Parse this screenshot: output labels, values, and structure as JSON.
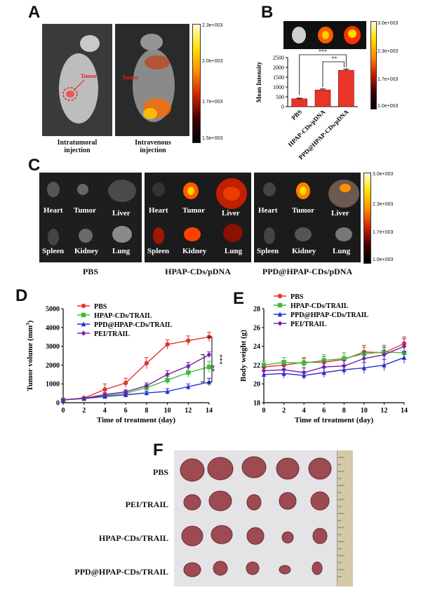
{
  "panels": {
    "a": "A",
    "b": "B",
    "c": "C",
    "d": "D",
    "e": "E",
    "f": "F"
  },
  "panelA": {
    "left_caption": "Intratumoral\ninjection",
    "right_caption": "Intravenous\ninjection",
    "tumor_label_left": "Tumor",
    "tumor_label_right": "Tumor",
    "colorbar_ticks": [
      "2.3e+003",
      "2.0e+003",
      "1.7e+003",
      "1.5e+003"
    ]
  },
  "panelB": {
    "colorbar_ticks": [
      "3.0e+003",
      "2.3e+003",
      "1.7e+003",
      "1.0e+003"
    ]
  },
  "panelC": {
    "groups": [
      "PBS",
      "HPAP-CDs/pDNA",
      "PPD@HPAP-CDs/pDNA"
    ],
    "organs_top": [
      "Heart",
      "Tumor",
      "Liver"
    ],
    "organs_bottom": [
      "Spleen",
      "Kidney",
      "Lung"
    ],
    "colorbar_ticks": [
      "3.0e+003",
      "2.3e+003",
      "1.7e+003",
      "1.0e+003"
    ]
  },
  "panelF": {
    "rows": [
      "PBS",
      "PEI/TRAIL",
      "HPAP-CDs/TRAIL",
      "PPD@HPAP-CDs/TRAIL"
    ]
  },
  "chart_data": [
    {
      "type": "bar",
      "ylabel": "Mean Intensity",
      "categories": [
        "PBS",
        "HPAP-CDs/pDNA",
        "PPD@HPAP-CDs/pDNA"
      ],
      "values": [
        400,
        850,
        1850
      ],
      "errors": [
        30,
        50,
        60
      ],
      "colors": [
        "#e8342a",
        "#e8342a",
        "#e8342a"
      ],
      "ylim": [
        0,
        2500
      ],
      "yticks": [
        0,
        500,
        1000,
        1500,
        2000,
        2500
      ],
      "significance": [
        "***",
        "**"
      ]
    },
    {
      "type": "line",
      "xlabel": "Time of treatment (day)",
      "ylabel": "Tumor volume (mm",
      "ylabel_sup": "3",
      "ylabel_end": ")",
      "x": [
        0,
        2,
        4,
        6,
        8,
        10,
        12,
        14
      ],
      "ylim": [
        0,
        5000
      ],
      "yticks": [
        0,
        1000,
        2000,
        3000,
        4000,
        5000
      ],
      "xticks": [
        0,
        2,
        4,
        6,
        8,
        10,
        12,
        14
      ],
      "series": [
        {
          "name": "PBS",
          "color": "#e8342a",
          "marker": "circle",
          "values": [
            150,
            250,
            700,
            1050,
            2100,
            3100,
            3300,
            3500
          ],
          "errors": [
            50,
            60,
            300,
            250,
            300,
            250,
            250,
            250
          ]
        },
        {
          "name": "HPAP-CDs/TRAIL",
          "color": "#3dbd3d",
          "marker": "square",
          "values": [
            150,
            220,
            380,
            500,
            800,
            1200,
            1600,
            1900
          ],
          "errors": [
            40,
            50,
            100,
            100,
            150,
            200,
            250,
            300
          ]
        },
        {
          "name": "PPD@HPAP-CDs/TRAIL",
          "color": "#2a2ed0",
          "marker": "triangle",
          "values": [
            150,
            220,
            330,
            420,
            520,
            600,
            850,
            1100
          ],
          "errors": [
            40,
            50,
            80,
            80,
            100,
            150,
            150,
            200
          ]
        },
        {
          "name": "PEI/TRAIL",
          "color": "#7a1fa8",
          "marker": "diamond",
          "values": [
            150,
            230,
            430,
            580,
            900,
            1500,
            1950,
            2550
          ],
          "errors": [
            40,
            50,
            100,
            100,
            150,
            200,
            200,
            150
          ]
        }
      ],
      "significance": [
        "***",
        "**"
      ]
    },
    {
      "type": "line",
      "xlabel": "Time of treatment (day)",
      "ylabel": "Body weight (g)",
      "x": [
        0,
        2,
        4,
        6,
        8,
        10,
        12,
        14
      ],
      "ylim": [
        18,
        28
      ],
      "yticks": [
        18,
        20,
        22,
        24,
        26,
        28
      ],
      "xticks": [
        0,
        2,
        4,
        6,
        8,
        10,
        12,
        14
      ],
      "series": [
        {
          "name": "PBS",
          "color": "#e8342a",
          "marker": "circle",
          "values": [
            21.8,
            22.0,
            22.3,
            22.3,
            22.6,
            23.4,
            23.3,
            24.3
          ],
          "errors": [
            0.4,
            0.5,
            0.5,
            0.6,
            0.7,
            0.7,
            0.8,
            0.7
          ]
        },
        {
          "name": "HPAP-CDs/TRAIL",
          "color": "#3dbd3d",
          "marker": "square",
          "values": [
            22.0,
            22.3,
            22.2,
            22.5,
            22.7,
            23.2,
            23.4,
            23.3
          ],
          "errors": [
            0.4,
            0.5,
            0.5,
            0.6,
            0.6,
            0.7,
            0.7,
            0.7
          ]
        },
        {
          "name": "PPD@HPAP-CDs/TRAIL",
          "color": "#2a2ed0",
          "marker": "triangle",
          "values": [
            21.0,
            21.1,
            20.9,
            21.2,
            21.5,
            21.7,
            22.0,
            22.8
          ],
          "errors": [
            0.4,
            0.5,
            0.4,
            0.5,
            0.5,
            0.6,
            0.6,
            0.6
          ]
        },
        {
          "name": "PEI/TRAIL",
          "color": "#7a1fa8",
          "marker": "diamond",
          "values": [
            21.4,
            21.5,
            21.2,
            21.8,
            21.9,
            22.7,
            23.1,
            24.0
          ],
          "errors": [
            0.4,
            0.5,
            0.5,
            0.6,
            0.6,
            0.7,
            0.8,
            0.8
          ]
        }
      ]
    }
  ]
}
